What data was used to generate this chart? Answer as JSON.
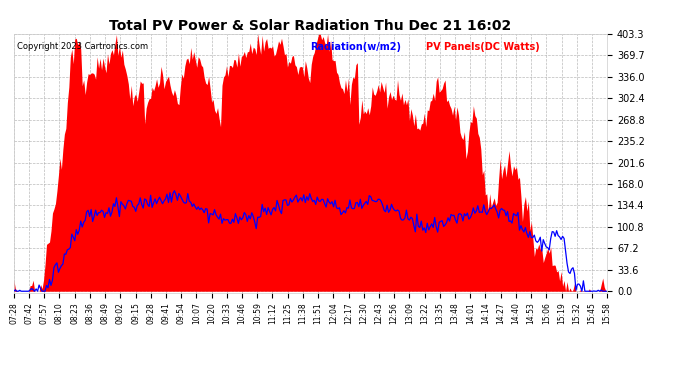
{
  "title": "Total PV Power & Solar Radiation Thu Dec 21 16:02",
  "copyright": "Copyright 2023 Cartronics.com",
  "legend_radiation": "Radiation(w/m2)",
  "legend_pv": "PV Panels(DC Watts)",
  "yticks": [
    0.0,
    33.6,
    67.2,
    100.8,
    134.4,
    168.0,
    201.6,
    235.2,
    268.8,
    302.4,
    336.0,
    369.7,
    403.3
  ],
  "ymax": 403.3,
  "bg_color": "#ffffff",
  "grid_color": "#aaaaaa",
  "radiation_color": "#0000ff",
  "pv_fill_color": "#ff0000",
  "title_color": "#000000",
  "copyright_color": "#000000",
  "radiation_label_color": "#0000ff",
  "pv_label_color": "#ff0000",
  "xtick_labels": [
    "07:28",
    "07:42",
    "07:57",
    "08:10",
    "08:23",
    "08:36",
    "08:49",
    "09:02",
    "09:15",
    "09:28",
    "09:41",
    "09:54",
    "10:07",
    "10:20",
    "10:33",
    "10:46",
    "10:59",
    "11:12",
    "11:25",
    "11:38",
    "11:51",
    "12:04",
    "12:17",
    "12:30",
    "12:43",
    "12:56",
    "13:09",
    "13:22",
    "13:35",
    "13:48",
    "14:01",
    "14:14",
    "14:27",
    "14:40",
    "14:53",
    "15:06",
    "15:19",
    "15:32",
    "15:45",
    "15:58"
  ]
}
